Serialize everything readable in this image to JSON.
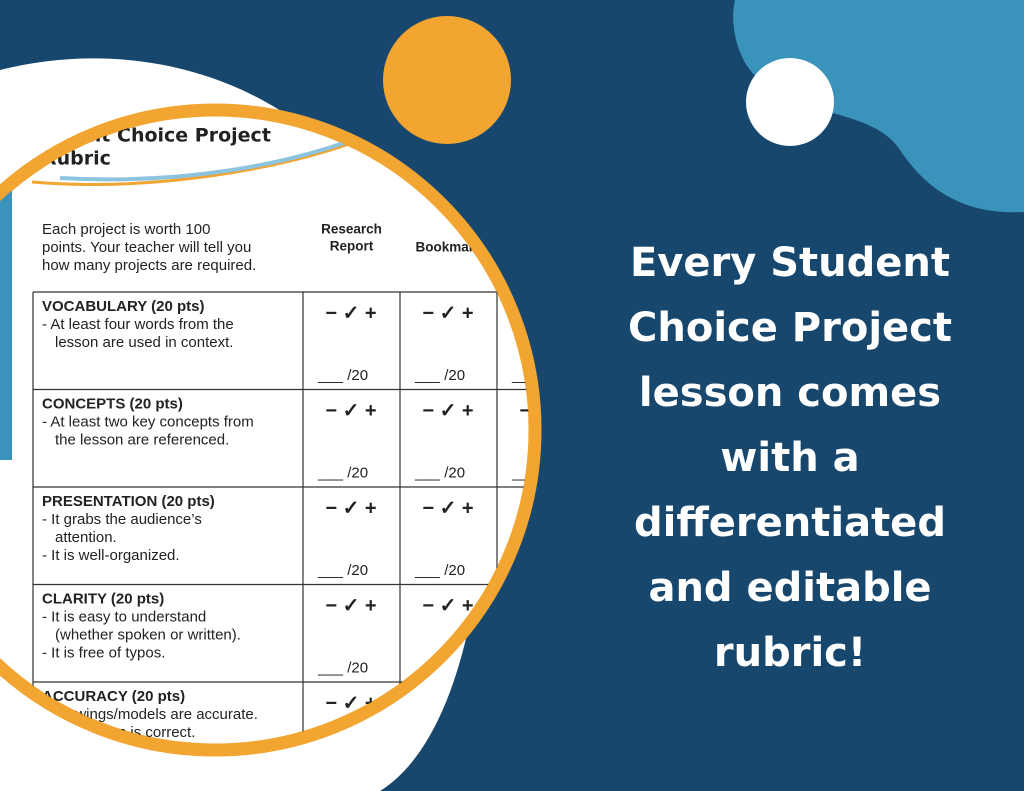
{
  "rubric": {
    "title": "Student Choice Project",
    "subtitle": "Rubric",
    "intro": [
      "Each project is worth 100",
      "points. Your teacher will tell you",
      "how many projects are required."
    ],
    "columns": [
      {
        "lines": [
          "Research",
          "Report"
        ]
      },
      {
        "lines": [
          "Bookmark"
        ]
      }
    ],
    "scale": "− ✓ +",
    "score": "___ /20",
    "criteria": [
      {
        "name": "VOCABULARY (20 pts)",
        "lines": [
          "- At least four words from the",
          "lesson are used in context."
        ]
      },
      {
        "name": "CONCEPTS (20 pts)",
        "lines": [
          "- At least two key concepts from",
          "the lesson are referenced."
        ]
      },
      {
        "name": "PRESENTATION (20 pts)",
        "lines": [
          "-  It grabs the audience’s",
          "attention.",
          "-  It is well-organized."
        ]
      },
      {
        "name": "CLARITY (20 pts)",
        "lines": [
          "- It is easy to understand",
          "(whether spoken or written).",
          "- It is free of typos."
        ]
      },
      {
        "name": "ACCURACY (20 pts)",
        "lines": [
          "- Drawings/models are accurate.",
          "- Information is correct."
        ]
      }
    ]
  },
  "headline": [
    "Every Student",
    "Choice Project",
    "lesson comes",
    "with a",
    "differentiated",
    "and editable",
    "rubric!"
  ]
}
